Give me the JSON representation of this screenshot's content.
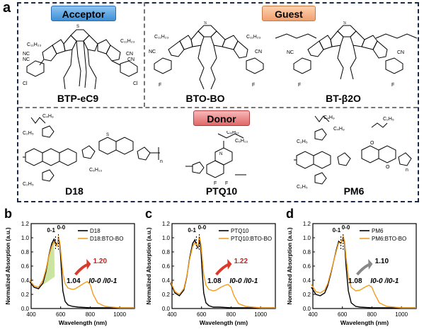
{
  "panel_a": {
    "letter": "a",
    "tags": {
      "acceptor": "Acceptor",
      "guest": "Guest",
      "donor": "Donor"
    },
    "molecules": {
      "btp": "BTP-eC9",
      "btobo": "BTO-BO",
      "btb2o": "BT-β2O",
      "d18": "D18",
      "ptq10": "PTQ10",
      "pm6": "PM6"
    }
  },
  "chart_data": [
    {
      "type": "line",
      "panel": "b",
      "xlabel": "Wavelength (nm)",
      "ylabel": "Normalized Absorption (a.u.)",
      "xlim": [
        400,
        1100
      ],
      "ylim": [
        0.0,
        1.2
      ],
      "xticks": [
        400,
        600,
        800,
        1000
      ],
      "yticks": [
        "0.0",
        "0.2",
        "0.4",
        "0.6",
        "0.8",
        "1.0",
        "1.2"
      ],
      "series": [
        {
          "name": "D18",
          "color": "#000000",
          "x": [
            390,
            420,
            450,
            480,
            500,
            520,
            540,
            555,
            565,
            575,
            585,
            595,
            605,
            615,
            630,
            650,
            680,
            720,
            800,
            900,
            1000,
            1100
          ],
          "y": [
            0.38,
            0.3,
            0.28,
            0.36,
            0.52,
            0.75,
            0.92,
            0.98,
            0.93,
            0.9,
            1.0,
            0.88,
            0.55,
            0.25,
            0.1,
            0.05,
            0.03,
            0.02,
            0.01,
            0.01,
            0.01,
            0.01
          ]
        },
        {
          "name": "D18:BTO-BO",
          "color": "#f39c1e",
          "x": [
            390,
            420,
            450,
            480,
            500,
            520,
            540,
            555,
            565,
            575,
            585,
            595,
            605,
            615,
            630,
            650,
            680,
            700,
            730,
            760,
            780,
            800,
            820,
            850,
            900,
            1000,
            1100
          ],
          "y": [
            0.4,
            0.32,
            0.3,
            0.4,
            0.55,
            0.74,
            0.88,
            0.94,
            0.9,
            0.88,
            1.02,
            0.92,
            0.7,
            0.5,
            0.35,
            0.29,
            0.27,
            0.28,
            0.32,
            0.36,
            0.38,
            0.34,
            0.2,
            0.08,
            0.03,
            0.01,
            0.01
          ]
        }
      ],
      "annotations": {
        "peak_hi": "0-0",
        "peak_lo": "0-1",
        "ratio_before": "1.04",
        "ratio_after": "1.20",
        "ratio_label": "I0-0 /I0-1"
      }
    },
    {
      "type": "line",
      "panel": "c",
      "xlabel": "Wavelength (nm)",
      "ylabel": "Normalized Absorption (a.u.)",
      "xlim": [
        400,
        1100
      ],
      "ylim": [
        0.0,
        1.2
      ],
      "xticks": [
        400,
        600,
        800,
        1000
      ],
      "yticks": [
        "0.0",
        "0.2",
        "0.4",
        "0.6",
        "0.8",
        "1.0",
        "1.2"
      ],
      "series": [
        {
          "name": "PTQ10",
          "color": "#000000",
          "x": [
            390,
            420,
            450,
            480,
            500,
            520,
            540,
            555,
            565,
            575,
            585,
            595,
            605,
            615,
            630,
            650,
            680,
            720,
            800,
            900,
            1000,
            1100
          ],
          "y": [
            0.36,
            0.22,
            0.18,
            0.26,
            0.45,
            0.72,
            0.92,
            0.97,
            0.9,
            0.86,
            0.98,
            0.85,
            0.5,
            0.22,
            0.08,
            0.04,
            0.02,
            0.02,
            0.01,
            0.01,
            0.01,
            0.01
          ]
        },
        {
          "name": "PTQ10:BTO-BO",
          "color": "#f39c1e",
          "x": [
            390,
            420,
            450,
            480,
            500,
            520,
            540,
            555,
            565,
            575,
            585,
            595,
            605,
            615,
            630,
            650,
            680,
            700,
            730,
            760,
            780,
            800,
            820,
            850,
            900,
            1000,
            1100
          ],
          "y": [
            0.38,
            0.24,
            0.2,
            0.28,
            0.46,
            0.7,
            0.88,
            0.93,
            0.9,
            0.88,
            1.02,
            0.92,
            0.7,
            0.48,
            0.33,
            0.27,
            0.25,
            0.26,
            0.3,
            0.33,
            0.34,
            0.3,
            0.18,
            0.07,
            0.03,
            0.01,
            0.01
          ]
        }
      ],
      "annotations": {
        "peak_hi": "0-0",
        "peak_lo": "0-1",
        "ratio_before": "1.08",
        "ratio_after": "1.22",
        "ratio_label": "I0-0 /I0-1"
      }
    },
    {
      "type": "line",
      "panel": "d",
      "xlabel": "Wavelength (nm)",
      "ylabel": "Normalized Absorption (a.u.)",
      "xlim": [
        400,
        1100
      ],
      "ylim": [
        0.0,
        1.2
      ],
      "xticks": [
        400,
        600,
        800,
        1000
      ],
      "yticks": [
        "0.0",
        "0.2",
        "0.4",
        "0.6",
        "0.8",
        "1.0",
        "1.2"
      ],
      "series": [
        {
          "name": "PM6",
          "color": "#000000",
          "x": [
            390,
            420,
            450,
            480,
            500,
            520,
            540,
            560,
            575,
            590,
            605,
            615,
            625,
            640,
            660,
            690,
            720,
            800,
            900,
            1000,
            1100
          ],
          "y": [
            0.3,
            0.2,
            0.18,
            0.22,
            0.32,
            0.48,
            0.66,
            0.84,
            0.95,
            0.92,
            1.0,
            0.92,
            0.6,
            0.25,
            0.08,
            0.03,
            0.02,
            0.01,
            0.01,
            0.01,
            0.01
          ]
        },
        {
          "name": "PM6:BTO-BO",
          "color": "#f39c1e",
          "x": [
            390,
            420,
            450,
            480,
            500,
            520,
            540,
            560,
            575,
            590,
            605,
            615,
            625,
            640,
            660,
            690,
            720,
            750,
            780,
            800,
            820,
            850,
            900,
            1000,
            1100
          ],
          "y": [
            0.34,
            0.24,
            0.22,
            0.26,
            0.35,
            0.5,
            0.66,
            0.82,
            0.93,
            0.92,
            1.02,
            0.95,
            0.72,
            0.45,
            0.3,
            0.25,
            0.26,
            0.3,
            0.33,
            0.3,
            0.2,
            0.08,
            0.03,
            0.01,
            0.01
          ]
        }
      ],
      "annotations": {
        "peak_hi": "0-0",
        "peak_lo": "0-1",
        "ratio_before": "1.08",
        "ratio_after": "1.10",
        "ratio_label": "I0-0 /I0-1"
      }
    }
  ]
}
